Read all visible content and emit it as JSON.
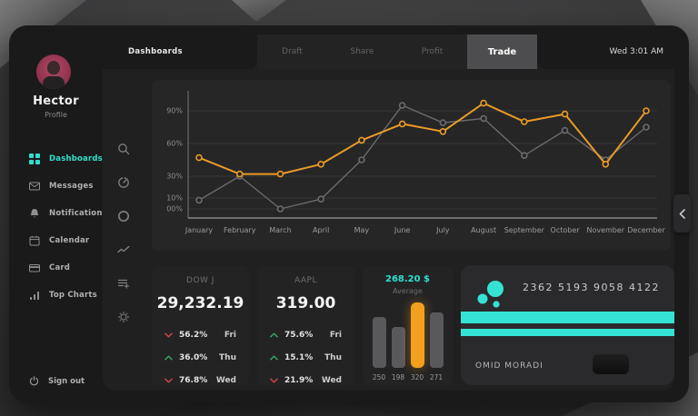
{
  "colors": {
    "accent_cyan": "#2fe0cd",
    "orange": "#f2a01e",
    "red": "#cf4548",
    "green": "#35a767",
    "gray_line": "#6b6b6e"
  },
  "topbar": {
    "section": "Dashboards",
    "tabs": [
      "Draft",
      "Share",
      "Profit",
      "Trade"
    ],
    "active_tab": "Trade",
    "time": "Wed 3:01 AM"
  },
  "sidebar": {
    "name": "Hector",
    "role": "Profile",
    "items": [
      {
        "label": "Dashboards",
        "icon": "grid-icon",
        "active": true
      },
      {
        "label": "Messages",
        "icon": "envelope-icon",
        "active": false
      },
      {
        "label": "Notification",
        "icon": "bell-icon",
        "active": false
      },
      {
        "label": "Calendar",
        "icon": "calendar-icon",
        "active": false
      },
      {
        "label": "Card",
        "icon": "credit-card-icon",
        "active": false
      },
      {
        "label": "Top Charts",
        "icon": "bar-chart-icon",
        "active": false
      }
    ],
    "signout": "Sign out"
  },
  "rail": {
    "icons": [
      "search-icon",
      "timer-icon",
      "ring-icon",
      "trend-icon",
      "playlist-add-icon",
      "gear-icon"
    ]
  },
  "chart_data": {
    "type": "line",
    "title": "",
    "x": [
      "January",
      "February",
      "March",
      "April",
      "May",
      "June",
      "July",
      "August",
      "September",
      "October",
      "November",
      "December"
    ],
    "series": [
      {
        "name": "baseline",
        "color": "#6b6b6e",
        "values": [
          8,
          30,
          0,
          9,
          45,
          95,
          79,
          83,
          49,
          72,
          45,
          75
        ]
      },
      {
        "name": "highlight",
        "color": "#eb9b26",
        "values": [
          47,
          32,
          32,
          41,
          63,
          78,
          71,
          97,
          80,
          87,
          41,
          90
        ]
      }
    ],
    "yticks": [
      {
        "label": "90%",
        "value": 90
      },
      {
        "label": "60%",
        "value": 60
      },
      {
        "label": "30%",
        "value": 30
      },
      {
        "label": "10%",
        "value": 10
      },
      {
        "label": "00%",
        "value": 0
      }
    ],
    "ylim": [
      0,
      105
    ],
    "grid": true,
    "legend": "none"
  },
  "cards": {
    "stocks": [
      {
        "symbol": "DOW J",
        "value": "29,232.19",
        "rows": [
          {
            "direction": "down",
            "percent": "56.2%",
            "day": "Fri"
          },
          {
            "direction": "up",
            "percent": "36.0%",
            "day": "Thu"
          },
          {
            "direction": "down",
            "percent": "76.8%",
            "day": "Wed"
          }
        ]
      },
      {
        "symbol": "AAPL",
        "value": "319.00",
        "rows": [
          {
            "direction": "up",
            "percent": "75.6%",
            "day": "Fri"
          },
          {
            "direction": "up",
            "percent": "15.1%",
            "day": "Thu"
          },
          {
            "direction": "down",
            "percent": "21.9%",
            "day": "Wed"
          }
        ]
      }
    ],
    "average": {
      "title": "268.20 $",
      "subtitle": "Average",
      "chart_data": {
        "type": "bar",
        "categories": [
          "250",
          "198",
          "320",
          "271"
        ],
        "values": [
          250,
          198,
          320,
          271
        ],
        "highlight_index": 2,
        "ylim": [
          0,
          320
        ]
      }
    },
    "credit": {
      "number": "2362 5193 9058 4122",
      "holder": "OMID MORADI"
    }
  }
}
